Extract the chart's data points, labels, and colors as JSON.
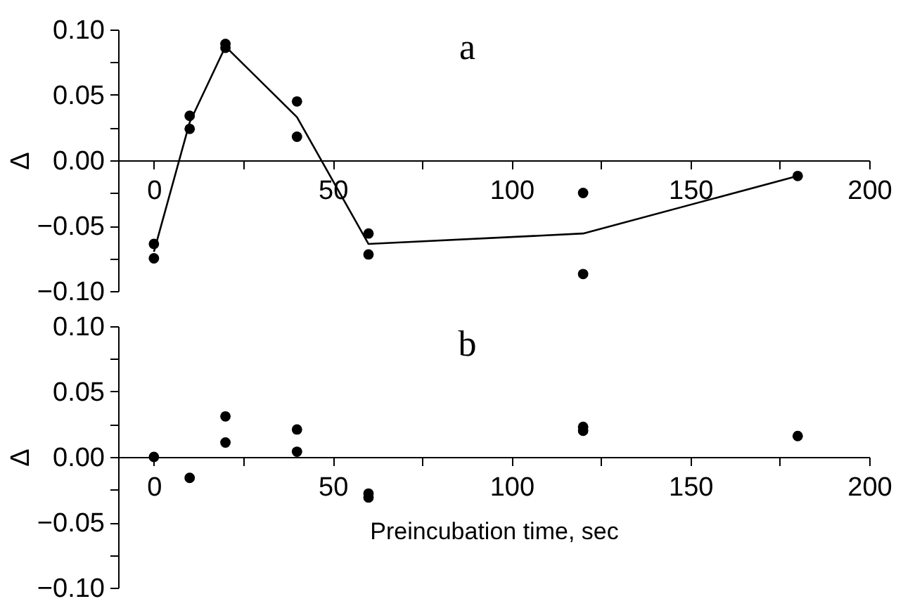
{
  "chart_data": [
    {
      "type": "scatter",
      "title": "a",
      "ylabel": "Δ",
      "marker": "circle",
      "xlim": [
        -10,
        200
      ],
      "ylim": [
        -0.1,
        0.1
      ],
      "xticks": [
        0,
        {
          "value": 25,
          "label": null
        },
        50,
        {
          "value": 75,
          "label": null
        },
        100,
        {
          "value": 125,
          "label": null
        },
        150,
        {
          "value": 175,
          "label": null
        },
        200
      ],
      "yticks": [
        {
          "value": -0.1,
          "label": "−0.10"
        },
        {
          "value": -0.075,
          "label": null
        },
        {
          "value": -0.05,
          "label": "−0.05"
        },
        {
          "value": -0.025,
          "label": null
        },
        {
          "value": 0,
          "label": "0.00"
        },
        {
          "value": 0.025,
          "label": null
        },
        {
          "value": 0.05,
          "label": "0.05"
        },
        {
          "value": 0.075,
          "label": null
        },
        {
          "value": 0.1,
          "label": "0.10"
        }
      ],
      "series": [
        {
          "type": "scatter",
          "color": "#000000",
          "x": [
            0,
            0,
            10,
            10,
            20,
            20,
            40,
            40,
            60,
            60,
            120,
            120,
            180
          ],
          "values": [
            -0.064,
            -0.075,
            0.034,
            0.024,
            0.089,
            0.086,
            0.045,
            0.018,
            -0.056,
            -0.072,
            -0.025,
            -0.087,
            -0.012
          ]
        },
        {
          "type": "line",
          "color": "#000000",
          "line_style": "solid",
          "marker": "none",
          "x": [
            0,
            10,
            20,
            40,
            60,
            120,
            180
          ],
          "values": [
            -0.07,
            0.029,
            0.087,
            0.033,
            -0.064,
            -0.056,
            -0.012
          ]
        }
      ]
    },
    {
      "type": "scatter",
      "title": "b",
      "ylabel": "Δ",
      "xlabel": "Preincubation time, sec",
      "marker": "circle",
      "xlim": [
        -10,
        200
      ],
      "ylim": [
        -0.1,
        0.1
      ],
      "xticks": [
        0,
        {
          "value": 25,
          "label": null
        },
        50,
        {
          "value": 75,
          "label": null
        },
        100,
        {
          "value": 125,
          "label": null
        },
        150,
        {
          "value": 175,
          "label": null
        },
        200
      ],
      "yticks": [
        {
          "value": -0.1,
          "label": "−0.10"
        },
        {
          "value": -0.075,
          "label": null
        },
        {
          "value": -0.05,
          "label": "−0.05"
        },
        {
          "value": -0.025,
          "label": null
        },
        {
          "value": 0,
          "label": "0.00"
        },
        {
          "value": 0.025,
          "label": null
        },
        {
          "value": 0.05,
          "label": "0.05"
        },
        {
          "value": 0.075,
          "label": null
        },
        {
          "value": 0.1,
          "label": "0.10"
        }
      ],
      "series": [
        {
          "type": "scatter",
          "color": "#000000",
          "x": [
            0,
            10,
            20,
            20,
            40,
            40,
            60,
            60,
            120,
            120,
            180
          ],
          "values": [
            0.0,
            -0.016,
            0.031,
            0.011,
            0.021,
            0.004,
            -0.028,
            -0.031,
            0.023,
            0.02,
            0.016
          ]
        }
      ]
    }
  ]
}
